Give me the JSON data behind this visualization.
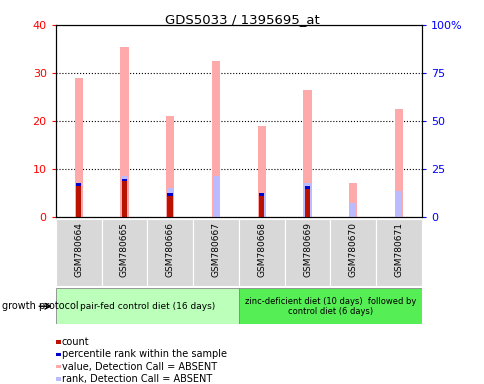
{
  "title": "GDS5033 / 1395695_at",
  "samples": [
    "GSM780664",
    "GSM780665",
    "GSM780666",
    "GSM780667",
    "GSM780668",
    "GSM780669",
    "GSM780670",
    "GSM780671"
  ],
  "value_absent": [
    29.0,
    35.5,
    21.0,
    32.5,
    19.0,
    26.5,
    7.0,
    22.5
  ],
  "count": [
    7.0,
    8.0,
    5.0,
    0.0,
    5.0,
    6.5,
    0.0,
    0.0
  ],
  "rank_absent": [
    7.0,
    8.5,
    6.0,
    8.5,
    5.0,
    7.0,
    3.0,
    5.5
  ],
  "percentile_rank": [
    7.0,
    8.5,
    6.0,
    8.5,
    5.0,
    7.0,
    3.0,
    5.5
  ],
  "ylim_left": [
    0,
    40
  ],
  "ylim_right": [
    0,
    100
  ],
  "yticks_left": [
    0,
    10,
    20,
    30,
    40
  ],
  "ytick_labels_left": [
    "0",
    "10",
    "20",
    "30",
    "40"
  ],
  "yticks_right": [
    0,
    25,
    50,
    75,
    100
  ],
  "ytick_labels_right": [
    "0",
    "25",
    "50",
    "75",
    "100%"
  ],
  "color_count": "#bb1100",
  "color_value_absent": "#ffaaaa",
  "color_rank_absent": "#bbbbff",
  "color_percentile": "#0000cc",
  "group1_label": "pair-fed control diet (16 days)",
  "group2_label": "zinc-deficient diet (10 days)  followed by\ncontrol diet (6 days)",
  "protocol_label": "growth protocol",
  "group1_color": "#bbffbb",
  "group2_color": "#55ee55",
  "legend_items": [
    {
      "label": "count",
      "color": "#bb1100"
    },
    {
      "label": "percentile rank within the sample",
      "color": "#0000cc"
    },
    {
      "label": "value, Detection Call = ABSENT",
      "color": "#ffaaaa"
    },
    {
      "label": "rank, Detection Call = ABSENT",
      "color": "#bbbbff"
    }
  ]
}
